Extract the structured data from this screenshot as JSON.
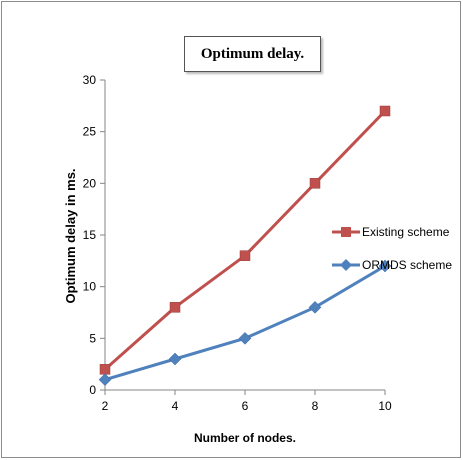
{
  "chart_data": {
    "type": "line",
    "title": "Optimum delay.",
    "xlabel": "Number of nodes.",
    "ylabel": "Optimum delay in ms.",
    "x": [
      2,
      4,
      6,
      8,
      10
    ],
    "xlim": [
      2,
      10
    ],
    "ylim": [
      0,
      30
    ],
    "yticks": [
      0,
      5,
      10,
      15,
      20,
      25,
      30
    ],
    "xticks": [
      2,
      4,
      6,
      8,
      10
    ],
    "grid": false,
    "legend_position": "right",
    "series": [
      {
        "name": "Existing scheme",
        "values": [
          2,
          8,
          13,
          20,
          27
        ],
        "color": "#c0504d",
        "marker": "square"
      },
      {
        "name": "ORMDS scheme",
        "values": [
          1,
          3,
          5,
          8,
          12
        ],
        "color": "#4f81bd",
        "marker": "diamond"
      }
    ]
  }
}
